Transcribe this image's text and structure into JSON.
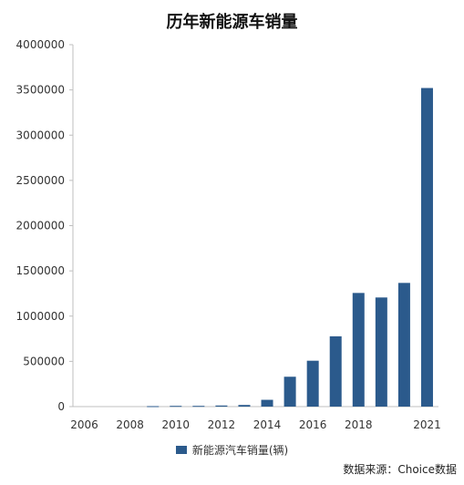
{
  "chart_data": {
    "type": "bar",
    "title": "历年新能源车销量",
    "xlabel": "",
    "ylabel": "",
    "ylim": [
      0,
      4000000
    ],
    "yticks": [
      0,
      500000,
      1000000,
      1500000,
      2000000,
      2500000,
      3000000,
      3500000,
      4000000
    ],
    "ytick_labels": [
      "0",
      "500000",
      "1000000",
      "1500000",
      "2000000",
      "2500000",
      "3000000",
      "3500000",
      "4000000"
    ],
    "categories": [
      "2006",
      "2007",
      "2008",
      "2009",
      "2010",
      "2011",
      "2012",
      "2013",
      "2014",
      "2015",
      "2016",
      "2017",
      "2018",
      "2019",
      "2020",
      "2021"
    ],
    "xtick_labels": [
      "2006",
      "",
      "2008",
      "",
      "2010",
      "",
      "2012",
      "",
      "2014",
      "",
      "2016",
      "",
      "2018",
      "",
      "",
      "2021"
    ],
    "series": [
      {
        "name": "新能源汽车销量(辆)",
        "values": [
          0,
          0,
          0,
          5000,
          8000,
          8000,
          12000,
          18000,
          75000,
          330000,
          507000,
          777000,
          1256000,
          1206000,
          1367000,
          3521000
        ]
      }
    ],
    "grid": false,
    "legend_position": "bottom",
    "bar_color": "#2b5a8c"
  },
  "source_note": "数据来源：Choice数据"
}
